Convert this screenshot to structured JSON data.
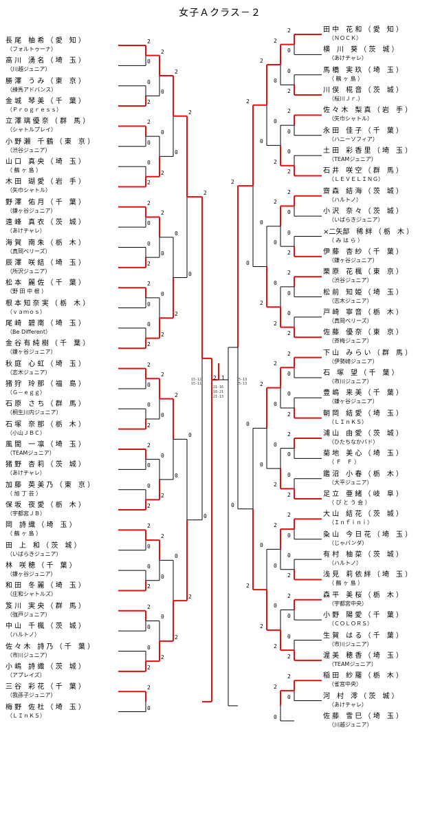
{
  "title": "女子Ａクラス－２",
  "left_players": [
    {
      "name": "長 尾　柚 希 （ 愛　知 ）",
      "team": "（フォルトゥーナ）"
    },
    {
      "name": "高 川　湧 名 （ 埼　玉 ）",
      "team": "（川越ジュニア）"
    },
    {
      "name": "勝 澤　う み （ 東　京 ）",
      "team": "（練馬アドバンス）"
    },
    {
      "name": "金 城　琴 美 （ 千　葉 ）",
      "team": "（Ｐｒｏｇｒｅｓｓ）"
    },
    {
      "name": "立 澤 璃 優 奈 （ 群　馬 ）",
      "team": "（シャトルプレイ）"
    },
    {
      "name": "小 野 瀬　千 鶴 （ 東　京 ）",
      "team": "（渋谷ジュニア）"
    },
    {
      "name": "山 口　真 央 （ 埼　玉 ）",
      "team": "（ 鶴 ヶ 島 ）"
    },
    {
      "name": "木 田　瑚 愛 （ 岩　手 ）",
      "team": "（矢巾シャトル）"
    },
    {
      "name": "野 澤　佑 月 （ 千　葉 ）",
      "team": "（鎌ヶ谷ジュニア）"
    },
    {
      "name": "遠 峰　真 衣 （ 茨　城 ）",
      "team": "（あけチャレ）"
    },
    {
      "name": "海 賀　南 朱 （ 栃　木 ）",
      "team": "（真岡ベリーズ）"
    },
    {
      "name": "辰 澤　咲 結 （ 埼　玉 ）",
      "team": "（所沢ジュニア）"
    },
    {
      "name": "松 本　麗 佐 （ 千　葉 ）",
      "team": "（野 田 中 根 ）"
    },
    {
      "name": "根 本 知 奈 実 （ 栃　木 ）",
      "team": "（ｖａｍｏｓ）"
    },
    {
      "name": "尾 崎　碧 南 （ 埼　玉 ）",
      "team": "（Be Different）"
    },
    {
      "name": "金 谷 有 純 樹 （ 千　葉 ）",
      "team": "（鎌ヶ谷ジュニア）"
    },
    {
      "name": "秋 庭　心 虹 （ 埼　玉 ）",
      "team": "（志木ジュニア）"
    },
    {
      "name": "猪 狩　玲 那 （ 福　島 ）",
      "team": "（Ｇ－ｅｇｇ）"
    },
    {
      "name": "石 原　さ ち （ 群　馬 ）",
      "team": "（桐生川内ジュニア）"
    },
    {
      "name": "石 塚　奈 那 （ 栃　木 ）",
      "team": "（小山ＪＢＣ）"
    },
    {
      "name": "風 間　一 凛 （ 埼　玉 ）",
      "team": "（TEAMジュニア）"
    },
    {
      "name": "猪 野　杏 莉 （ 茨　城 ）",
      "team": "（あけチャレ）"
    },
    {
      "name": "加 藤　英 美 乃 （ 東　京 ）",
      "team": "（ 旭 丁 芸 ）"
    },
    {
      "name": "保 坂　夜 愛 （ 栃　木 ）",
      "team": "（宇都宮ＪＢ）"
    },
    {
      "name": "岡　詩 織 （ 埼　玉 ）",
      "team": "（ 鶴 ヶ 島 ）"
    },
    {
      "name": "田　上　和 （ 茨　城 ）",
      "team": "（いばらきジュニア）"
    },
    {
      "name": "林　咲 穂 （ 千　葉 ）",
      "team": "（鎌ヶ谷ジュニア）"
    },
    {
      "name": "和 田　冬 麗 （ 埼　玉 ）",
      "team": "（庄和シャトルズ）"
    },
    {
      "name": "笈 川　実 央 （ 群　馬 ）",
      "team": "（強戸ジュニア）"
    },
    {
      "name": "中 山　千 楓 （ 茨　城 ）",
      "team": "（ハルトノ）"
    },
    {
      "name": "佐 々 木　詩 乃 （ 千　葉 ）",
      "team": "（市川ジュニア）"
    },
    {
      "name": "小 嶋　詩 織 （ 茨　城 ）",
      "team": "（アプレイズ）"
    },
    {
      "name": "三 谷　彩 花 （ 千　葉 ）",
      "team": "（我孫子ジュニア）"
    },
    {
      "name": "梅 野　佐 杜 （ 埼　玉 ）",
      "team": "（ＬＩｎＫＳ）"
    }
  ],
  "right_players": [
    {
      "name": "田 中　花 和 （ 愛　知 ）",
      "team": "（ＮＯＣＫ）"
    },
    {
      "name": "横　川　葵 （ 茨　城 ）",
      "team": "（あけチャレ）"
    },
    {
      "name": "馬 橋　実 玖 （ 埼　玉 ）",
      "team": "（ 鶴 ヶ 島 ）"
    },
    {
      "name": "川 俣　椛 音 （ 茨　城 ）",
      "team": "（桜川Ｊｒ.）"
    },
    {
      "name": "佐 々 木　梨 真 （ 岩　手 ）",
      "team": "（矢巾シャトル）"
    },
    {
      "name": "永 田　佳 子 （ 千　葉 ）",
      "team": "（ハニーソフィア）"
    },
    {
      "name": "土 田　彩 香 里 （ 埼　玉 ）",
      "team": "（TEAMジュニア）"
    },
    {
      "name": "石 井　咲 空 （ 群　馬 ）",
      "team": "（ＬＥＶＥＬＩＮＧ）"
    },
    {
      "name": "齋 森　結 海 （ 茨　城 ）",
      "team": "（ハルトノ）"
    },
    {
      "name": "小 沢　奈 々 （ 茨　城 ）",
      "team": "（いばらきジュニア）"
    },
    {
      "name": "×二矢部　稀 絆 （ 栃　木 ）",
      "team": "（ み は ら ）"
    },
    {
      "name": "伊 藤　杏 紗 （ 千　葉 ）",
      "team": "（鎌ヶ谷ジュニア）"
    },
    {
      "name": "栗 原　花 楓 （ 東　京 ）",
      "team": "（渋谷ジュニア）"
    },
    {
      "name": "松 前　知 姫 （ 埼　玉 ）",
      "team": "（志木ジュニア）"
    },
    {
      "name": "戸 崎　寧 音 （ 栃　木 ）",
      "team": "（真岡ベリーズ）"
    },
    {
      "name": "佐 藤　優 奈 （ 東　京 ）",
      "team": "（斉梅ジュニア）"
    },
    {
      "name": "下 山　み ら い （ 群　馬 ）",
      "team": "（伊勢崎ジュニア）"
    },
    {
      "name": "石　塚　望 （ 千　葉 ）",
      "team": "（市川ジュニア）"
    },
    {
      "name": "豊 嶋　来 美 （ 千　葉 ）",
      "team": "（鎌ヶ谷ジュニア）"
    },
    {
      "name": "朝 岡　結 愛 （ 埼　玉 ）",
      "team": "（ＬＩｎＫＳ）"
    },
    {
      "name": "浦 山　由 愛 （ 茨　城 ）",
      "team": "（ひたちなかバド）"
    },
    {
      "name": "菊 地　美 心 （ 埼　玉 ）",
      "team": "（ Ｆ　Ｆ ）"
    },
    {
      "name": "鑑 沼　小 春 （ 栃　木 ）",
      "team": "（大平ジュニア）"
    },
    {
      "name": "足 立　亜 緒 （ 岐　阜 ）",
      "team": "（ ぴ と う 会 ）"
    },
    {
      "name": "大 山　結 花 （ 茨　城 ）",
      "team": "（Ｉｎｆｉｎｉ）"
    },
    {
      "name": "粂 山　今 日 花 （ 埼　玉 ）",
      "team": "（じゃパンダ）"
    },
    {
      "name": "有 村　柚 菜 （ 茨　城 ）",
      "team": "（ハルトノ）"
    },
    {
      "name": "浅 見　莉 依 絆 （ 埼　玉 ）",
      "team": "（ 鶴 ヶ 島 ）"
    },
    {
      "name": "森 平　美 桜 （ 栃　木 ）",
      "team": "（宇都宮中央）"
    },
    {
      "name": "小 野　陽 愛 （ 千　葉 ）",
      "team": "（ＣＯＬＯＲＳ）"
    },
    {
      "name": "生 賀　は る （ 千　葉 ）",
      "team": "（市川ジュニア）"
    },
    {
      "name": "渥 美　穂 香 （ 埼　玉 ）",
      "team": "（TEAMジュニア）"
    },
    {
      "name": "稲 田　紗 羅 （ 栃　木 ）",
      "team": "（雀宮中央）"
    },
    {
      "name": "河　村　澪 （ 茨　城 ）",
      "team": "（あけチャレ）"
    },
    {
      "name": "佐 藤　雪 巳 （ 埼　玉 ）",
      "team": "（川越ジュニア）"
    }
  ],
  "final": {
    "left_score": "2",
    "right_score": "1",
    "games": [
      "21-16",
      "18-21",
      "21-13"
    ]
  },
  "semifinal_scores": {
    "left": [
      "15-12",
      "15-11"
    ],
    "right": [
      "15-13",
      "15-13"
    ]
  },
  "colors": {
    "winner_line": "#e01010",
    "loser_line": "#000000"
  }
}
